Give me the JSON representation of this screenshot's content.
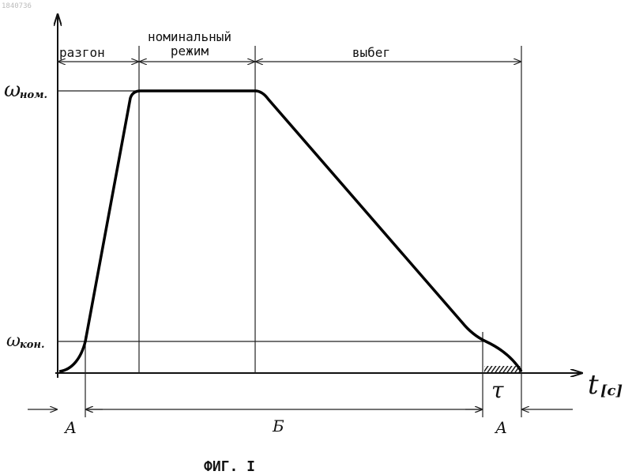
{
  "doc_number": "1840736",
  "phases": {
    "accel": "разгон",
    "nominal_1": "номинальный",
    "nominal_2": "режим",
    "coast": "выбег"
  },
  "y_axis": {
    "omega": "ω",
    "nom": "ном.",
    "kon": "кон."
  },
  "x_axis": {
    "t": "t",
    "unit": "[c]",
    "tau": "τ"
  },
  "intervals": {
    "a_left": "А",
    "b": "Б",
    "a_right": "А"
  },
  "caption": "ФИГ. I"
}
